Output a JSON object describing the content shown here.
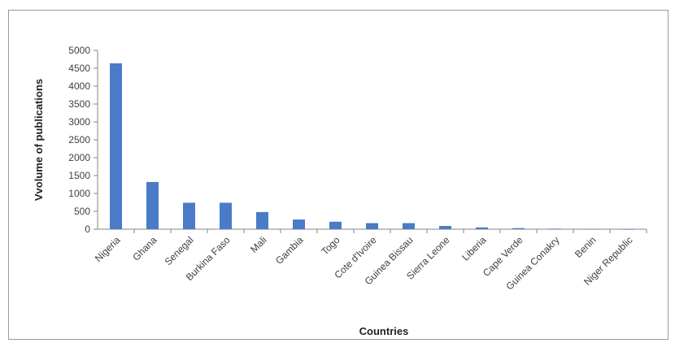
{
  "chart_data": {
    "type": "bar",
    "title": "",
    "xlabel": "Countries",
    "ylabel": "Vvolume of publications",
    "categories": [
      "Nigeria",
      "Ghana",
      "Senegal",
      "Burkina Faso",
      "Mali",
      "Gambia",
      "Togo",
      "Cote d'Ivoire",
      "Guinea Bissau",
      "Sierra Leone",
      "Liberia",
      "Cape Verde",
      "Guinea Conakry",
      "Benin",
      "Niger Republic"
    ],
    "values": [
      4640,
      1320,
      740,
      740,
      480,
      270,
      210,
      170,
      170,
      90,
      50,
      30,
      15,
      10,
      5
    ],
    "ylim": [
      0,
      5000
    ],
    "yticks": [
      0,
      500,
      1000,
      1500,
      2000,
      2500,
      3000,
      3500,
      4000,
      4500,
      5000
    ],
    "bar_color": "#4a7bc8",
    "grid": false,
    "legend": "none"
  }
}
